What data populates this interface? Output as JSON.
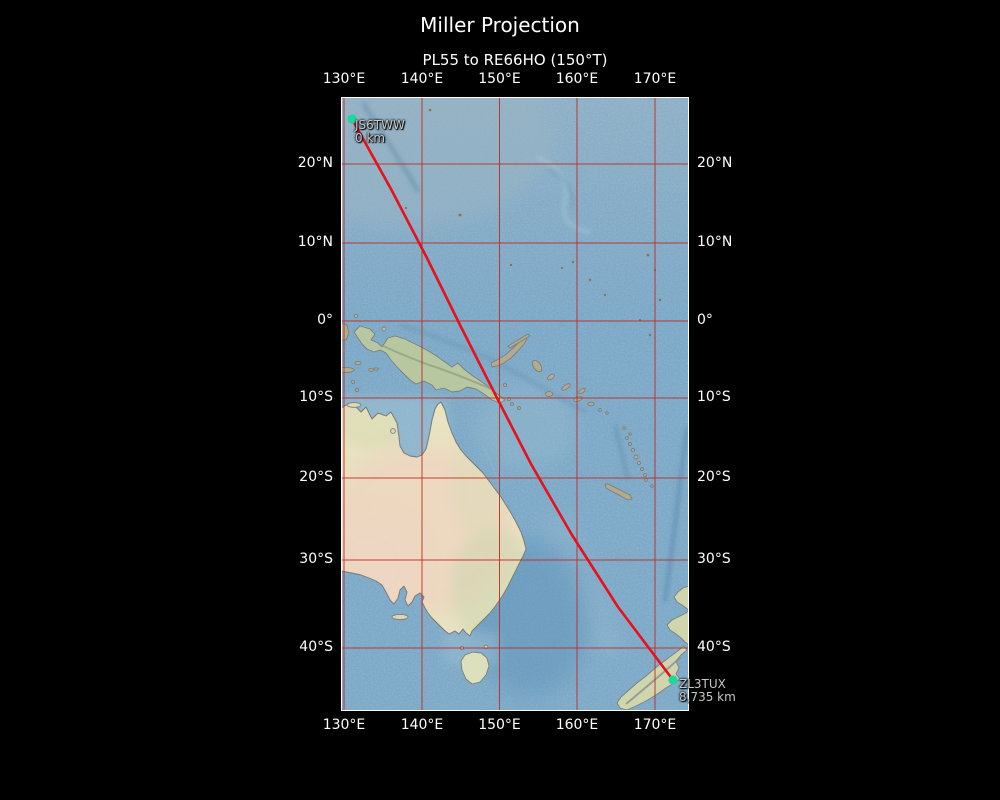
{
  "title": "Miller Projection",
  "subtitle": "PL55 to RE66HO (150°T)",
  "axes": {
    "lon_ticks": [
      "130°E",
      "140°E",
      "150°E",
      "160°E",
      "170°E"
    ],
    "lat_ticks": [
      "20°N",
      "10°N",
      "0°",
      "10°S",
      "20°S",
      "30°S",
      "40°S"
    ]
  },
  "route": {
    "start": {
      "callsign": "JS6TWW",
      "distance": "0 km"
    },
    "end": {
      "callsign": "ZL3TUX",
      "distance": "8,735 km"
    }
  },
  "colors": {
    "route_line": "#e8101a",
    "gridline": "#c0281e",
    "marker": "#1fd69e",
    "ocean": "#7da9c7",
    "land": "#e8e3c1"
  }
}
